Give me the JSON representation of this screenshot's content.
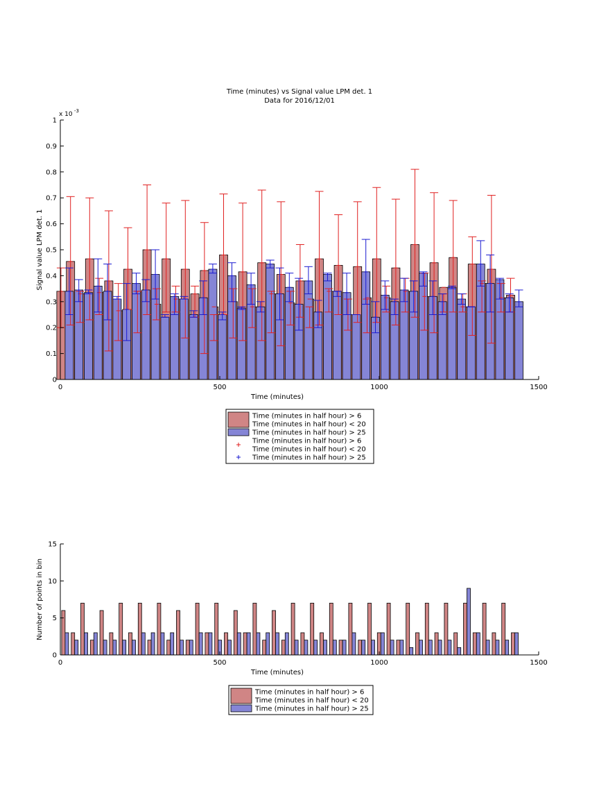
{
  "chart_data": [
    {
      "type": "bar",
      "title": "Time (minutes) vs Signal value LPM det. 1",
      "subtitle": "Data for 2016/12/01",
      "xlabel": "Time (minutes)",
      "ylabel": "Signal value LPM det. 1",
      "y_exponent_label": "x 10",
      "y_exponent": "-3",
      "xlim": [
        0,
        1500
      ],
      "ylim": [
        0,
        1
      ],
      "xticks": [
        "0",
        "500",
        "1000",
        "1500"
      ],
      "yticks": [
        "0",
        "0.1",
        "0.2",
        "0.3",
        "0.4",
        "0.5",
        "0.6",
        "0.7",
        "0.8",
        "0.9",
        "1"
      ],
      "grid": false,
      "legend_position": "below",
      "colors": {
        "red": "#d08585",
        "blue": "#8585d6",
        "red_err": "#e02020",
        "blue_err": "#1a1ad0"
      },
      "legend": [
        {
          "kind": "bar",
          "color": "red",
          "lines": [
            "Time (minutes in half hour) > 6",
            "Time (minutes in half hour) < 20"
          ]
        },
        {
          "kind": "bar",
          "color": "blue",
          "lines": [
            "Time (minutes in half hour) > 25"
          ]
        },
        {
          "kind": "marker",
          "color": "red_err",
          "lines": [
            "Time (minutes in half hour) > 6",
            "Time (minutes in half hour) < 20"
          ]
        },
        {
          "kind": "marker",
          "color": "blue_err",
          "lines": [
            "Time (minutes in half hour) > 25"
          ]
        }
      ],
      "x": [
        15,
        45,
        75,
        105,
        135,
        165,
        195,
        225,
        255,
        285,
        315,
        345,
        375,
        405,
        435,
        465,
        495,
        525,
        555,
        585,
        615,
        645,
        675,
        705,
        735,
        765,
        795,
        825,
        855,
        885,
        915,
        945,
        975,
        1005,
        1035,
        1065,
        1095,
        1125,
        1155,
        1185,
        1215,
        1245,
        1275,
        1305,
        1335,
        1365,
        1395,
        1425
      ],
      "series": [
        {
          "name": "Time (minutes in half hour) > 6 Time (minutes in half hour) < 20",
          "color": "red",
          "values": [
            0.34,
            0.455,
            0.33,
            0.465,
            0.335,
            0.38,
            0.265,
            0.425,
            0.34,
            0.5,
            0.29,
            0.465,
            0.31,
            0.425,
            0.33,
            0.42,
            0.28,
            0.48,
            0.3,
            0.415,
            0.28,
            0.45,
            0.33,
            0.405,
            0.295,
            0.38,
            0.31,
            0.465,
            0.34,
            0.44,
            0.25,
            0.435,
            0.315,
            0.465,
            0.315,
            0.43,
            0.34,
            0.52,
            0.32,
            0.45,
            0.355,
            0.47,
            0.28,
            0.445,
            0.37,
            0.425,
            0.315,
            0.325
          ],
          "error_low": [
            0.2,
            0.21,
            0.22,
            0.23,
            0.25,
            0.11,
            0.15,
            0.27,
            0.18,
            0.25,
            0.23,
            0.26,
            0.26,
            0.16,
            0.24,
            0.1,
            0.15,
            0.25,
            0.16,
            0.15,
            0.2,
            0.15,
            0.18,
            0.13,
            0.21,
            0.24,
            0.2,
            0.21,
            0.26,
            0.25,
            0.19,
            0.22,
            0.18,
            0.22,
            0.26,
            0.21,
            0.26,
            0.24,
            0.19,
            0.18,
            0.26,
            0.26,
            0.26,
            0.17,
            0.26,
            0.14,
            0.26,
            0.26
          ],
          "error_high": [
            0.43,
            0.705,
            0.34,
            0.7,
            0.39,
            0.65,
            0.37,
            0.585,
            0.34,
            0.75,
            0.35,
            0.68,
            0.36,
            0.69,
            0.36,
            0.605,
            0.25,
            0.715,
            0.35,
            0.68,
            0.35,
            0.73,
            0.34,
            0.685,
            0.34,
            0.52,
            0.28,
            0.725,
            0.35,
            0.635,
            0.31,
            0.685,
            0.31,
            0.74,
            0.36,
            0.695,
            0.39,
            0.81,
            0.41,
            0.72,
            0.33,
            0.69,
            0.33,
            0.55,
            0.38,
            0.71,
            0.37,
            0.39
          ]
        },
        {
          "name": "Time (minutes in half hour) > 25",
          "color": "blue",
          "values": [
            0.34,
            0.345,
            0.335,
            0.36,
            0.34,
            0.31,
            0.27,
            0.37,
            0.345,
            0.405,
            0.24,
            0.32,
            0.31,
            0.25,
            0.315,
            0.425,
            0.25,
            0.4,
            0.275,
            0.365,
            0.28,
            0.445,
            0.33,
            0.355,
            0.29,
            0.38,
            0.26,
            0.405,
            0.34,
            0.335,
            0.25,
            0.415,
            0.24,
            0.325,
            0.3,
            0.345,
            0.34,
            0.41,
            0.32,
            0.3,
            0.355,
            0.31,
            0.28,
            0.445,
            0.37,
            0.385,
            0.315,
            0.3
          ],
          "error_low": [
            0.25,
            0.3,
            0.33,
            0.26,
            0.23,
            0.31,
            0.15,
            0.33,
            0.3,
            0.31,
            0.24,
            0.25,
            0.31,
            0.24,
            0.25,
            0.41,
            0.23,
            0.3,
            0.27,
            0.29,
            0.26,
            0.43,
            0.23,
            0.3,
            0.19,
            0.33,
            0.2,
            0.38,
            0.32,
            0.25,
            0.25,
            0.29,
            0.18,
            0.27,
            0.25,
            0.3,
            0.26,
            0.36,
            0.25,
            0.25,
            0.35,
            0.29,
            0.28,
            0.36,
            0.26,
            0.31,
            0.26,
            0.28
          ],
          "error_high": [
            0.43,
            0.385,
            0.345,
            0.465,
            0.445,
            0.32,
            0.37,
            0.41,
            0.385,
            0.5,
            0.25,
            0.33,
            0.32,
            0.265,
            0.38,
            0.445,
            0.26,
            0.45,
            0.28,
            0.41,
            0.3,
            0.46,
            0.43,
            0.41,
            0.39,
            0.435,
            0.305,
            0.41,
            0.34,
            0.41,
            0.25,
            0.54,
            0.3,
            0.38,
            0.31,
            0.39,
            0.38,
            0.415,
            0.38,
            0.33,
            0.36,
            0.33,
            0.28,
            0.535,
            0.48,
            0.39,
            0.33,
            0.345
          ]
        }
      ]
    },
    {
      "type": "bar",
      "xlabel": "Time (minutes)",
      "ylabel": "Number of points in bin",
      "xlim": [
        0,
        1500
      ],
      "ylim": [
        0,
        15
      ],
      "xticks": [
        "0",
        "500",
        "1000",
        "1500"
      ],
      "yticks": [
        "0",
        "5",
        "10",
        "15"
      ],
      "grid": false,
      "legend_position": "below",
      "colors": {
        "red": "#d08585",
        "blue": "#8585d6"
      },
      "legend": [
        {
          "kind": "bar",
          "color": "red",
          "lines": [
            "Time (minutes in half hour) > 6",
            "Time (minutes in half hour) < 20"
          ]
        },
        {
          "kind": "bar",
          "color": "blue",
          "lines": [
            "Time (minutes in half hour) > 25"
          ]
        }
      ],
      "x": [
        15,
        45,
        75,
        105,
        135,
        165,
        195,
        225,
        255,
        285,
        315,
        345,
        375,
        405,
        435,
        465,
        495,
        525,
        555,
        585,
        615,
        645,
        675,
        705,
        735,
        765,
        795,
        825,
        855,
        885,
        915,
        945,
        975,
        1005,
        1035,
        1065,
        1095,
        1125,
        1155,
        1185,
        1215,
        1245,
        1275,
        1305,
        1335,
        1365,
        1395,
        1425
      ],
      "series": [
        {
          "name": "Time (minutes in half hour) > 6 Time (minutes in half hour) < 20",
          "color": "red",
          "values": [
            6,
            3,
            7,
            2,
            6,
            3,
            7,
            3,
            7,
            2,
            7,
            2,
            6,
            2,
            7,
            3,
            7,
            3,
            6,
            3,
            7,
            2,
            6,
            2,
            7,
            3,
            7,
            3,
            7,
            2,
            7,
            2,
            7,
            3,
            7,
            2,
            7,
            3,
            7,
            3,
            7,
            3,
            7,
            3,
            7,
            3,
            7,
            3
          ]
        },
        {
          "name": "Time (minutes in half hour) > 25",
          "color": "blue",
          "values": [
            3,
            2,
            3,
            3,
            2,
            2,
            2,
            2,
            3,
            3,
            3,
            3,
            2,
            2,
            3,
            3,
            2,
            2,
            3,
            3,
            3,
            3,
            3,
            3,
            2,
            2,
            2,
            2,
            2,
            2,
            3,
            2,
            2,
            3,
            2,
            2,
            1,
            2,
            2,
            2,
            2,
            1,
            9,
            3,
            2,
            2,
            2,
            3
          ]
        }
      ]
    }
  ]
}
